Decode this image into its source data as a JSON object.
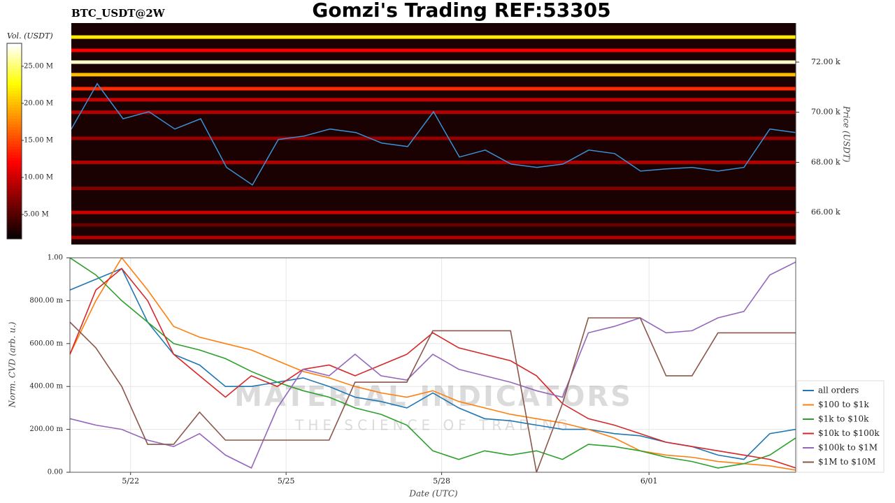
{
  "title": "Gomzi's Trading REF:53305",
  "watermark": {
    "title": "MATERIAL INDICATORS",
    "subtitle": "THE SCIENCE OF TRADING"
  },
  "chart_data": [
    {
      "type": "heatmap-line",
      "title": "BTC_USDT@2W",
      "y_label": "Price (USDT)",
      "x": [
        0,
        0.5,
        1,
        1.5,
        2,
        2.5,
        3,
        3.5,
        4,
        4.5,
        5,
        5.5,
        6,
        6.5,
        7,
        7.5,
        8,
        8.5,
        9,
        9.5,
        10,
        10.5,
        11,
        11.5,
        12,
        12.5,
        13,
        13.5,
        14
      ],
      "xlim": [
        0,
        14
      ],
      "ylim": [
        64720,
        73560
      ],
      "yticks": [
        {
          "value": 66000,
          "label": "66.00 k"
        },
        {
          "value": 68000,
          "label": "68.00 k"
        },
        {
          "value": 70000,
          "label": "70.00 k"
        },
        {
          "value": 72000,
          "label": "72.00 k"
        }
      ],
      "series": [
        {
          "color": "#3b8fd4",
          "values": [
            69330,
            71140,
            69740,
            70020,
            69330,
            69740,
            67800,
            67100,
            68910,
            69050,
            69330,
            69190,
            68770,
            68630,
            70020,
            68210,
            68490,
            67930,
            67800,
            67930,
            68490,
            68350,
            67650,
            67740,
            67800,
            67650,
            67800,
            69330,
            69190
          ]
        }
      ],
      "heatmap": {
        "prices": [
          73000,
          72470,
          72000,
          71500,
          70940,
          70500,
          70000,
          68960,
          68000,
          66960,
          66000,
          65500,
          65000
        ],
        "volumes": [
          22000000,
          12000000,
          27000000,
          20000000,
          14000000,
          10000000,
          9000000,
          8000000,
          9000000,
          7000000,
          10000000,
          6000000,
          9000000
        ]
      },
      "colorbar": {
        "label": "Vol. (USDT)",
        "lim": [
          1700000,
          28100000
        ],
        "ticks": [
          {
            "value": 5000000,
            "label": "5.00 M"
          },
          {
            "value": 10000000,
            "label": "10.00 M"
          },
          {
            "value": 15000000,
            "label": "15.00 M"
          },
          {
            "value": 20000000,
            "label": "20.00 M"
          },
          {
            "value": 25000000,
            "label": "25.00 M"
          }
        ]
      }
    },
    {
      "type": "line",
      "y_label": "Norm. CVD (arb. u.)",
      "x_label": "Date (UTC)",
      "x": [
        0,
        0.5,
        1,
        1.5,
        2,
        2.5,
        3,
        3.5,
        4,
        4.5,
        5,
        5.5,
        6,
        6.5,
        7,
        7.5,
        8,
        8.5,
        9,
        9.5,
        10,
        10.5,
        11,
        11.5,
        12,
        12.5,
        13,
        13.5,
        14
      ],
      "xlim": [
        0,
        14
      ],
      "xticks": [
        {
          "value": 1.17,
          "label": "5/22"
        },
        {
          "value": 4.17,
          "label": "5/25"
        },
        {
          "value": 7.17,
          "label": "5/28"
        },
        {
          "value": 11.17,
          "label": "6/01"
        }
      ],
      "ylim": [
        0,
        1
      ],
      "yticks": [
        {
          "value": 0,
          "label": "0.00"
        },
        {
          "value": 0.2,
          "label": "200.00 m"
        },
        {
          "value": 0.4,
          "label": "400.00 m"
        },
        {
          "value": 0.6,
          "label": "600.00 m"
        },
        {
          "value": 0.8,
          "label": "800.00 m"
        },
        {
          "value": 1,
          "label": "1.00"
        }
      ],
      "grid": true,
      "legend": "lower right",
      "series": [
        {
          "name": "all orders",
          "color": "#1f77b4",
          "values": [
            0.85,
            0.9,
            0.95,
            0.7,
            0.55,
            0.5,
            0.4,
            0.4,
            0.42,
            0.44,
            0.4,
            0.35,
            0.33,
            0.3,
            0.37,
            0.3,
            0.25,
            0.24,
            0.22,
            0.2,
            0.2,
            0.18,
            0.17,
            0.14,
            0.12,
            0.08,
            0.06,
            0.18,
            0.2
          ]
        },
        {
          "name": "$100 to $1k",
          "color": "#ff7f0e",
          "values": [
            0.55,
            0.8,
            1.0,
            0.85,
            0.68,
            0.63,
            0.6,
            0.57,
            0.52,
            0.47,
            0.44,
            0.4,
            0.37,
            0.35,
            0.38,
            0.33,
            0.3,
            0.27,
            0.25,
            0.23,
            0.2,
            0.16,
            0.1,
            0.08,
            0.07,
            0.05,
            0.04,
            0.03,
            0.01
          ]
        },
        {
          "name": "$1k to $10k",
          "color": "#2ca02c",
          "values": [
            1.0,
            0.92,
            0.8,
            0.7,
            0.6,
            0.57,
            0.53,
            0.47,
            0.42,
            0.38,
            0.35,
            0.3,
            0.27,
            0.22,
            0.1,
            0.06,
            0.1,
            0.08,
            0.1,
            0.06,
            0.13,
            0.12,
            0.1,
            0.07,
            0.05,
            0.02,
            0.04,
            0.08,
            0.16
          ]
        },
        {
          "name": "$10k to $100k",
          "color": "#d62728",
          "values": [
            0.55,
            0.85,
            0.95,
            0.8,
            0.55,
            0.45,
            0.35,
            0.45,
            0.4,
            0.48,
            0.5,
            0.45,
            0.5,
            0.55,
            0.65,
            0.58,
            0.55,
            0.52,
            0.45,
            0.32,
            0.25,
            0.22,
            0.18,
            0.14,
            0.12,
            0.1,
            0.08,
            0.06,
            0.02
          ]
        },
        {
          "name": "$100k to $1M",
          "color": "#9467bd",
          "values": [
            0.25,
            0.22,
            0.2,
            0.15,
            0.12,
            0.18,
            0.08,
            0.02,
            0.3,
            0.48,
            0.45,
            0.55,
            0.45,
            0.43,
            0.55,
            0.48,
            0.45,
            0.42,
            0.38,
            0.35,
            0.65,
            0.68,
            0.72,
            0.65,
            0.66,
            0.72,
            0.75,
            0.92,
            0.98
          ]
        },
        {
          "name": "$1M to $10M",
          "color": "#8c564b",
          "values": [
            0.7,
            0.58,
            0.4,
            0.13,
            0.13,
            0.28,
            0.15,
            0.15,
            0.15,
            0.15,
            0.15,
            0.42,
            0.42,
            0.42,
            0.66,
            0.66,
            0.66,
            0.66,
            0.0,
            0.32,
            0.72,
            0.72,
            0.72,
            0.45,
            0.45,
            0.65,
            0.65,
            0.65,
            0.65
          ]
        }
      ]
    }
  ]
}
